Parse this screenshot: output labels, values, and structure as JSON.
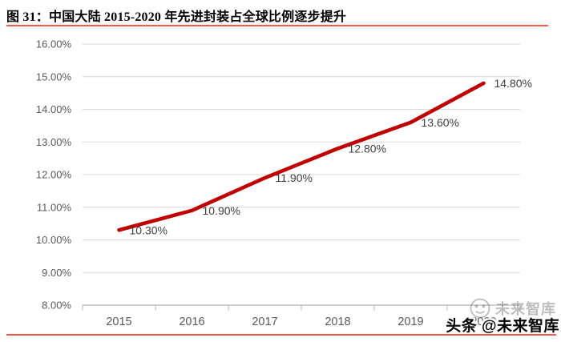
{
  "header": {
    "title": "图 31：中国大陆 2015-2020 年先进封装占全球比例逐步提升",
    "rule_color": "#ee5a4b"
  },
  "chart_data": {
    "type": "line",
    "title": "中国大陆 2015-2020 年先进封装占全球比例逐步提升",
    "categories": [
      "2015",
      "2016",
      "2017",
      "2018",
      "2019",
      "2020"
    ],
    "values": [
      10.3,
      10.9,
      11.9,
      12.8,
      13.6,
      14.8
    ],
    "data_labels": [
      "10.30%",
      "10.90%",
      "11.90%",
      "12.80%",
      "13.60%",
      "14.80%"
    ],
    "y_tick_labels": [
      "16.00%",
      "15.00%",
      "14.00%",
      "13.00%",
      "12.00%",
      "11.00%",
      "10.00%",
      "9.00%",
      "8.00%"
    ],
    "ylim": [
      8,
      16
    ],
    "xlabel": "",
    "ylabel": "",
    "grid": true,
    "legend_position": "none",
    "line_color": "#c00000",
    "grid_color": "#d9d9d9",
    "axis_color": "#bfbfbf",
    "tick_label_color": "#595959",
    "data_label_color": "#3f3f3f"
  },
  "footer": {
    "rule_color": "#ee5a4b"
  },
  "watermark": {
    "front": "头条 @未来智库",
    "ghost": "未来智库"
  }
}
